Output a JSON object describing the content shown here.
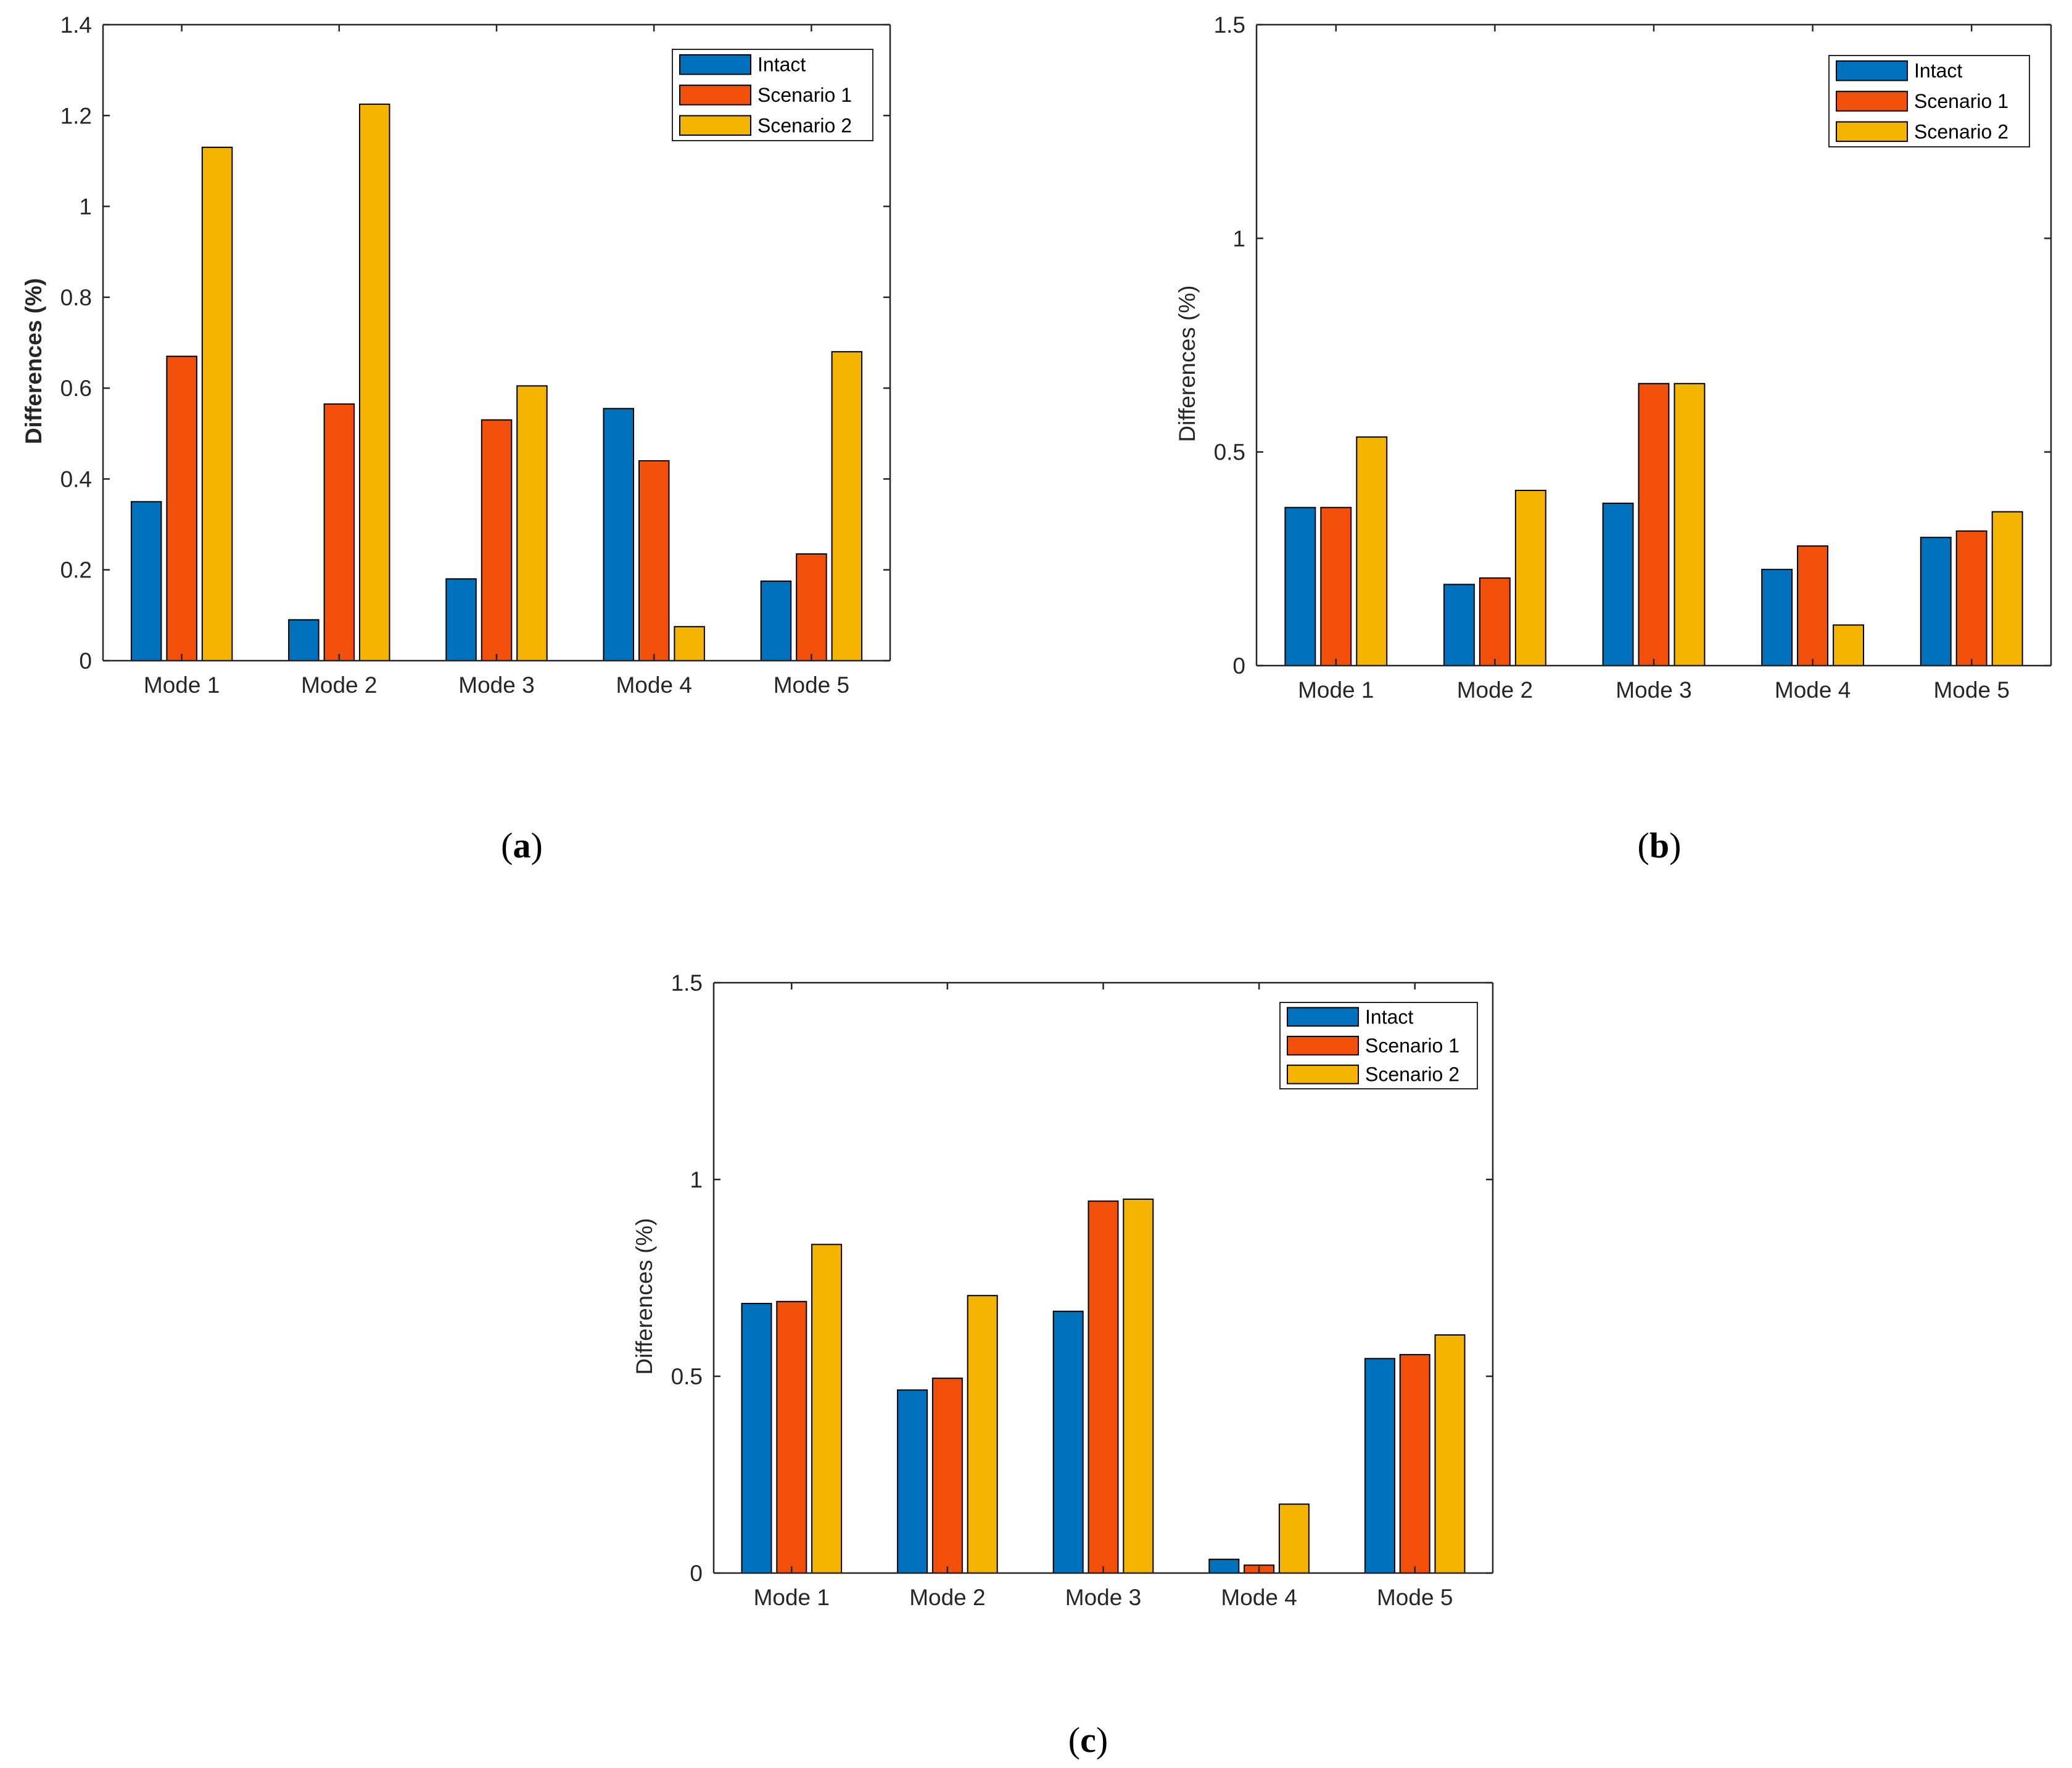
{
  "colors": {
    "intact": "#0072BD",
    "scenario1": "#F24F0B",
    "scenario2": "#F5B400",
    "axis": "#262626",
    "bar_edge": "#000000"
  },
  "chart_data": [
    {
      "type": "bar",
      "panel": "a",
      "title": "",
      "xlabel": "",
      "ylabel": "Differences (%)",
      "ylabel_bold": true,
      "ylim": [
        0,
        1.4
      ],
      "yticks": [
        0,
        0.2,
        0.4,
        0.6,
        0.8,
        1,
        1.2,
        1.4
      ],
      "ytick_labels": [
        "0",
        "0.2",
        "0.4",
        "0.6",
        "0.8",
        "1",
        "1.2",
        "1.4"
      ],
      "categories": [
        "Mode 1",
        "Mode 2",
        "Mode 3",
        "Mode 4",
        "Mode 5"
      ],
      "legend_position": "top-right",
      "series": [
        {
          "name": "Intact",
          "color_key": "intact",
          "values": [
            0.35,
            0.09,
            0.18,
            0.555,
            0.175
          ]
        },
        {
          "name": "Scenario 1",
          "color_key": "scenario1",
          "values": [
            0.67,
            0.565,
            0.53,
            0.44,
            0.235
          ]
        },
        {
          "name": "Scenario 2",
          "color_key": "scenario2",
          "values": [
            1.13,
            1.225,
            0.605,
            0.075,
            0.68
          ]
        }
      ]
    },
    {
      "type": "bar",
      "panel": "b",
      "title": "",
      "xlabel": "",
      "ylabel": "Differences (%)",
      "ylabel_bold": false,
      "ylim": [
        0,
        1.5
      ],
      "yticks": [
        0,
        0.5,
        1,
        1.5
      ],
      "ytick_labels": [
        "0",
        "0.5",
        "1",
        "1.5"
      ],
      "categories": [
        "Mode 1",
        "Mode 2",
        "Mode 3",
        "Mode 4",
        "Mode 5"
      ],
      "legend_position": "top-right",
      "series": [
        {
          "name": "Intact",
          "color_key": "intact",
          "values": [
            0.37,
            0.19,
            0.38,
            0.225,
            0.3
          ]
        },
        {
          "name": "Scenario 1",
          "color_key": "scenario1",
          "values": [
            0.37,
            0.205,
            0.66,
            0.28,
            0.315
          ]
        },
        {
          "name": "Scenario 2",
          "color_key": "scenario2",
          "values": [
            0.535,
            0.41,
            0.66,
            0.095,
            0.36
          ]
        }
      ]
    },
    {
      "type": "bar",
      "panel": "c",
      "title": "",
      "xlabel": "",
      "ylabel": "Differences (%)",
      "ylabel_bold": false,
      "ylim": [
        0,
        1.5
      ],
      "yticks": [
        0,
        0.5,
        1,
        1.5
      ],
      "ytick_labels": [
        "0",
        "0.5",
        "1",
        "1.5"
      ],
      "categories": [
        "Mode 1",
        "Mode 2",
        "Mode 3",
        "Mode 4",
        "Mode 5"
      ],
      "legend_position": "top-right",
      "series": [
        {
          "name": "Intact",
          "color_key": "intact",
          "values": [
            0.685,
            0.465,
            0.665,
            0.035,
            0.545
          ]
        },
        {
          "name": "Scenario 1",
          "color_key": "scenario1",
          "values": [
            0.69,
            0.495,
            0.945,
            0.02,
            0.555
          ]
        },
        {
          "name": "Scenario 2",
          "color_key": "scenario2",
          "values": [
            0.835,
            0.705,
            0.95,
            0.175,
            0.605
          ]
        }
      ]
    }
  ],
  "panel_labels": [
    {
      "open": "(",
      "letter": "a",
      "close": ")"
    },
    {
      "open": "(",
      "letter": "b",
      "close": ")"
    },
    {
      "open": "(",
      "letter": "c",
      "close": ")"
    }
  ]
}
